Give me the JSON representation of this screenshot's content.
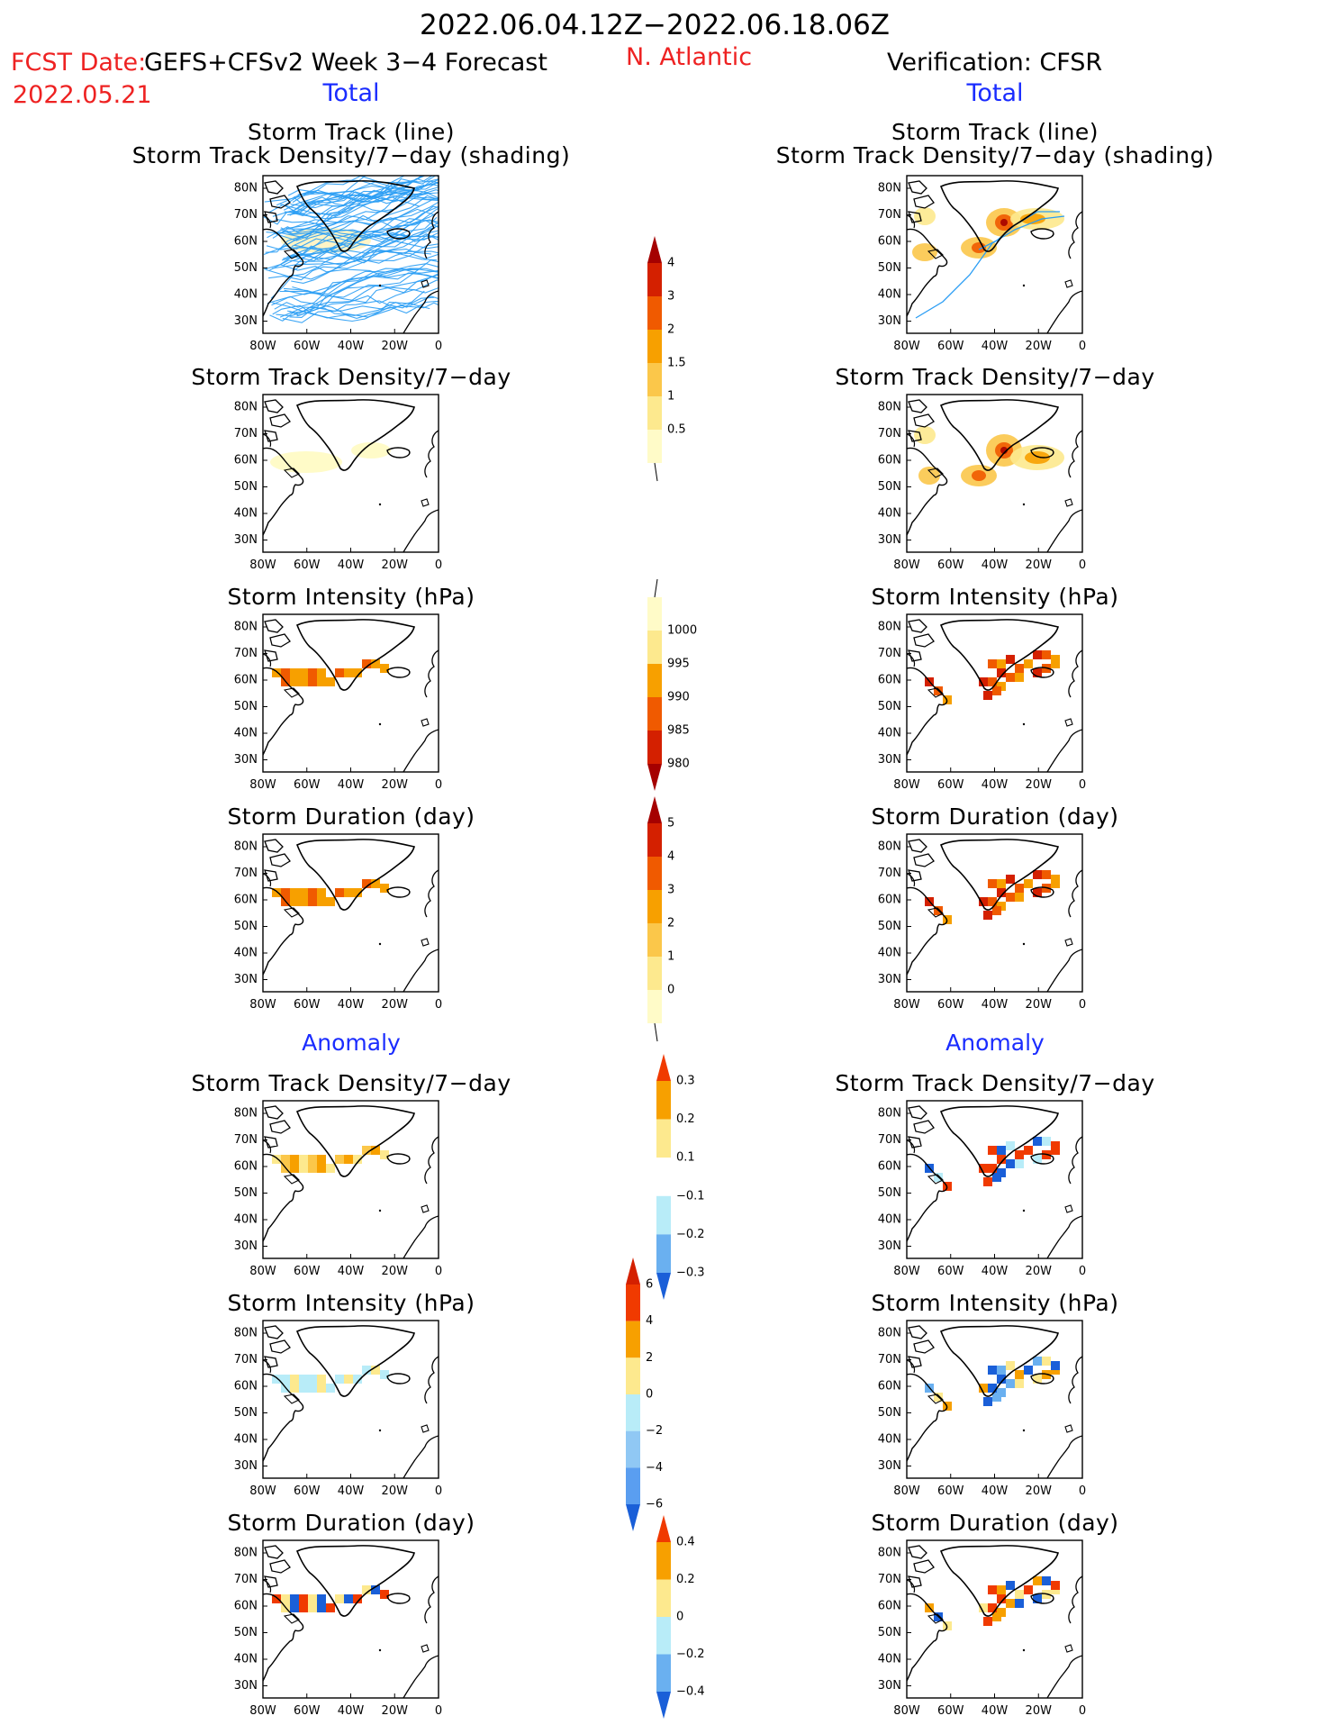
{
  "header": {
    "period": "2022.06.04.12Z−2022.06.18.06Z",
    "fcst_label": "FCST Date:",
    "fcst_model": "GEFS+CFSv2 Week 3−4 Forecast",
    "fcst_date": "2022.05.21",
    "region": "N. Atlantic",
    "verification": "Verification: CFSR",
    "left_total": "Total",
    "right_total": "Total",
    "left_anomaly": "Anomaly",
    "right_anomaly": "Anomaly"
  },
  "colors": {
    "track_line": "#2a9df4",
    "title_red": "#ee2222",
    "title_blue": "#1a2cff"
  },
  "axes": {
    "lat_labels": [
      "80N",
      "70N",
      "60N",
      "50N",
      "40N",
      "30N"
    ],
    "lon_labels": [
      "80W",
      "60W",
      "40W",
      "20W",
      "0"
    ]
  },
  "panels": {
    "left": [
      {
        "title1": "Storm Track (line)",
        "title2": "Storm Track Density/7−day (shading)"
      },
      {
        "title1": "Storm Track Density/7−day"
      },
      {
        "title1": "Storm Intensity (hPa)"
      },
      {
        "title1": "Storm Duration (day)"
      },
      {
        "title1": "Storm Track Density/7−day"
      },
      {
        "title1": "Storm Intensity (hPa)"
      },
      {
        "title1": "Storm Duration (day)"
      }
    ],
    "right": [
      {
        "title1": "Storm Track (line)",
        "title2": "Storm Track Density/7−day (shading)"
      },
      {
        "title1": "Storm Track Density/7−day"
      },
      {
        "title1": "Storm Intensity (hPa)"
      },
      {
        "title1": "Storm Duration (day)"
      },
      {
        "title1": "Storm Track Density/7−day"
      },
      {
        "title1": "Storm Intensity (hPa)"
      },
      {
        "title1": "Storm Duration (day)"
      }
    ]
  },
  "colorbars": {
    "density": {
      "labels": [
        "4",
        "3",
        "2",
        "1.5",
        "1",
        "0.5"
      ],
      "colors": [
        "#a50000",
        "#d42000",
        "#f05a00",
        "#f7a000",
        "#fbc74a",
        "#fde98e",
        "#fffbc8"
      ]
    },
    "intensity": {
      "labels": [
        "1000",
        "995",
        "990",
        "985",
        "980"
      ],
      "colors": [
        "#fffbc8",
        "#fde98e",
        "#f7a000",
        "#f05a00",
        "#d42000",
        "#a50000"
      ]
    },
    "duration": {
      "labels": [
        "5",
        "4",
        "3",
        "2",
        "1",
        "0"
      ],
      "colors": [
        "#a50000",
        "#d42000",
        "#f05a00",
        "#f7a000",
        "#fbc74a",
        "#fde98e",
        "#fffbc8"
      ]
    },
    "density_anom": {
      "labels": [
        "0.3",
        "0.2",
        "0.1",
        "−0.1",
        "−0.2",
        "−0.3"
      ],
      "colors": [
        "#f03a00",
        "#f7a000",
        "#fde98e",
        "#ffffff",
        "#b8ecf8",
        "#6ab0f0",
        "#1a5fd8"
      ]
    },
    "intensity_anom": {
      "labels": [
        "6",
        "4",
        "2",
        "0",
        "−2",
        "−4",
        "−6"
      ],
      "colors": [
        "#d42000",
        "#f03a00",
        "#f7a000",
        "#fde98e",
        "#b8ecf8",
        "#90c8f4",
        "#5a9ef0",
        "#1a5fd8"
      ]
    },
    "duration_anom": {
      "labels": [
        "0.4",
        "0.2",
        "0",
        "−0.2",
        "−0.4"
      ],
      "colors": [
        "#f03a00",
        "#f7a000",
        "#fde98e",
        "#b8ecf8",
        "#6ab0f0",
        "#1a5fd8"
      ]
    }
  }
}
